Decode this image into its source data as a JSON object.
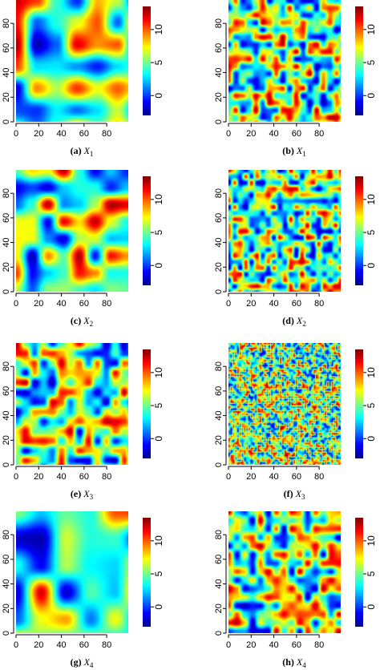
{
  "colormap": [
    "#00008f",
    "#0000ff",
    "#0080ff",
    "#00ffff",
    "#80ff80",
    "#ffff00",
    "#ff8000",
    "#ff0000",
    "#800000"
  ],
  "colorbar": {
    "min": -3,
    "max": 13.5,
    "ticks": [
      0,
      5,
      10
    ]
  },
  "axes": {
    "x_ticks": [
      0,
      20,
      40,
      60,
      80
    ],
    "y_ticks": [
      0,
      20,
      40,
      60,
      80
    ],
    "range": [
      0,
      99
    ]
  },
  "panels": [
    {
      "label": "(a)",
      "var": "X",
      "sub": "1",
      "seed": 11,
      "scale": 18,
      "lo": -2.5,
      "hi": 13
    },
    {
      "label": "(b)",
      "var": "X",
      "sub": "1",
      "seed": 12,
      "scale": 6,
      "lo": -2.5,
      "hi": 13
    },
    {
      "label": "(c)",
      "var": "X",
      "sub": "2",
      "seed": 21,
      "scale": 14,
      "lo": -2.5,
      "hi": 13
    },
    {
      "label": "(d)",
      "var": "X",
      "sub": "2",
      "seed": 22,
      "scale": 5,
      "lo": -2.5,
      "hi": 13
    },
    {
      "label": "(e)",
      "var": "X",
      "sub": "3",
      "seed": 31,
      "scale": 8,
      "lo": -2.5,
      "hi": 13
    },
    {
      "label": "(f)",
      "var": "X",
      "sub": "3",
      "seed": 32,
      "scale": 2,
      "lo": -2.5,
      "hi": 13
    },
    {
      "label": "(g)",
      "var": "X",
      "sub": "4",
      "seed": 41,
      "scale": 22,
      "lo": -2.5,
      "hi": 13
    },
    {
      "label": "(h)",
      "var": "X",
      "sub": "4",
      "seed": 42,
      "scale": 7,
      "lo": -2.5,
      "hi": 13
    }
  ]
}
